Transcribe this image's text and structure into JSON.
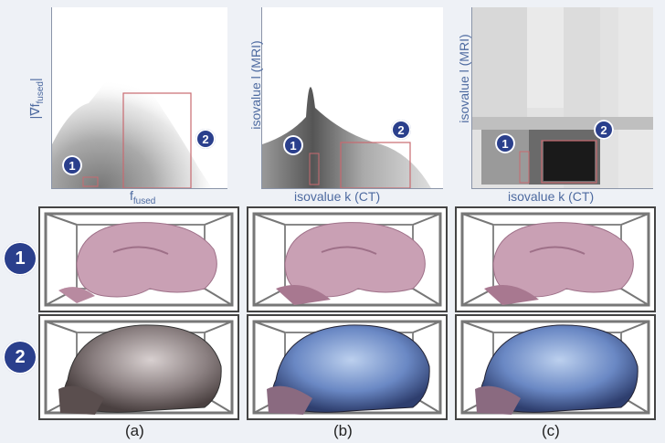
{
  "plots": [
    {
      "xlabel": "f",
      "xlabel_sub": "fused",
      "ylabel": "|∇f",
      "ylabel_sub": "fused",
      "ylabel_end": "|"
    },
    {
      "xlabel": "isovalue k (CT)",
      "ylabel": "isovalue l (MRI)"
    },
    {
      "xlabel": "isovalue k (CT)",
      "ylabel": "isovalue l (MRI)"
    }
  ],
  "badges": {
    "one": "1",
    "two": "2"
  },
  "row_labels": [
    "1",
    "2"
  ],
  "column_labels": [
    "(a)",
    "(b)",
    "(c)"
  ],
  "colors": {
    "badge": "#2a3f8c",
    "axis_text": "#4d6aa0",
    "selection_box": "#c86a70",
    "brain_pink": "#c9a0b4",
    "skull_blue": "#6a88c4"
  }
}
